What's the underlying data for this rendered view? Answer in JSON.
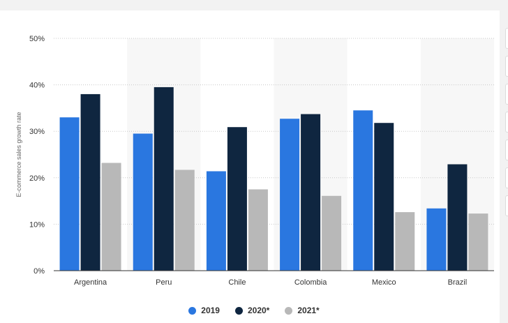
{
  "colors": {
    "s2019": "#2a77e0",
    "s2020": "#0f2640",
    "s2021": "#b8b8b8",
    "grid": "#c8c8c8",
    "band": "#f7f7f7"
  },
  "chart_data": {
    "type": "bar",
    "ylabel": "E-commerce sales growth rate",
    "ylim": [
      0,
      50
    ],
    "yticks": [
      0,
      10,
      20,
      30,
      40,
      50
    ],
    "ytick_labels": [
      "0%",
      "10%",
      "20%",
      "30%",
      "40%",
      "50%"
    ],
    "categories": [
      "Argentina",
      "Peru",
      "Chile",
      "Colombia",
      "Mexico",
      "Brazil"
    ],
    "series": [
      {
        "name": "2019",
        "values": [
          33,
          29.5,
          21.4,
          32.7,
          34.5,
          13.4
        ]
      },
      {
        "name": "2020*",
        "values": [
          38,
          39.5,
          30.9,
          33.7,
          31.8,
          22.9
        ]
      },
      {
        "name": "2021*",
        "values": [
          23.2,
          21.7,
          17.5,
          16.1,
          12.6,
          12.3
        ]
      }
    ],
    "grid": true,
    "legend": "bottom-center"
  }
}
